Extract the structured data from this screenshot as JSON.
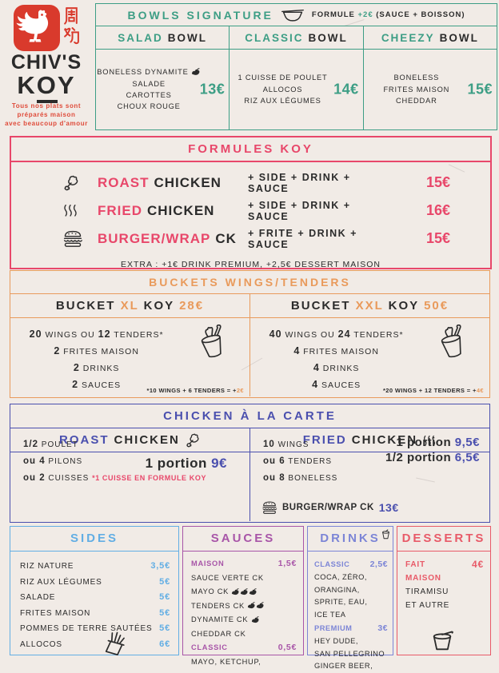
{
  "colors": {
    "teal": "#3d9e85",
    "pink": "#e8476a",
    "orange": "#e99a5b",
    "indigo": "#4a4fae",
    "sky": "#62aee4",
    "purple": "#a855a8",
    "periwinkle": "#7c85d6",
    "rose": "#e85a68",
    "logo_red": "#d93a2c",
    "ink": "#2b2b2b",
    "paper": "#f1ebe6"
  },
  "logo": {
    "chinese_top": "周",
    "chinese_bottom": "鸡",
    "brand_top": "CHIV'S",
    "brand_koy_k": "K",
    "brand_koy_o": "O",
    "brand_koy_y": "Y",
    "tagline_lines": [
      "Tous nos plats sont",
      "préparés maison",
      "avec beaucoup d'amour"
    ]
  },
  "bowls": {
    "title": "BOWLS SIGNATURE",
    "formule": {
      "label": "FORMULE ",
      "plus": "+2€",
      "rest": " (SAUCE + BOISSON)"
    },
    "columns": [
      {
        "accent": "SALAD",
        "rest": "BOWL",
        "items": [
          "BONELESS DYNAMITE",
          "SALADE",
          "CAROTTES",
          "CHOUX ROUGE"
        ],
        "chili_after_item": 0,
        "price": "13€"
      },
      {
        "accent": "CLASSIC",
        "rest": "BOWL",
        "items": [
          "1 CUISSE DE POULET",
          "ALLOCOS",
          "RIZ AUX LÉGUMES"
        ],
        "price": "14€"
      },
      {
        "accent": "CHEEZY",
        "rest": "BOWL",
        "items": [
          "BONELESS",
          "FRITES MAISON",
          "CHEDDAR"
        ],
        "price": "15€"
      }
    ]
  },
  "formules": {
    "title": "FORMULES KOY",
    "rows": [
      {
        "icon": "drumstick",
        "accent": "ROAST",
        "rest": "CHICKEN",
        "extras": "+ SIDE + DRINK + SAUCE",
        "price": "15€"
      },
      {
        "icon": "steam",
        "accent": "FRIED",
        "rest": "CHICKEN",
        "extras": "+ SIDE + DRINK + SAUCE",
        "price": "16€"
      },
      {
        "icon": "burger",
        "accent": "BURGER/WRAP",
        "rest": "CK",
        "extras": "+ FRITE + DRINK + SAUCE",
        "price": "15€"
      }
    ],
    "extra_note": "EXTRA : +1€ DRINK PREMIUM, +2,5€ DESSERT MAISON"
  },
  "buckets": {
    "title": "BUCKETS WINGS/TENDERS",
    "columns": [
      {
        "header": [
          {
            "t": "BUCKET ",
            "c": "ink"
          },
          {
            "t": "XL",
            "c": "or"
          },
          {
            "t": " KOY ",
            "c": "ink"
          },
          {
            "t": "28€",
            "c": "or"
          }
        ],
        "items": [
          [
            {
              "t": "20",
              "b": 1
            },
            {
              "t": " WINGS OU "
            },
            {
              "t": "12",
              "b": 1
            },
            {
              "t": " TENDERS*"
            }
          ],
          [
            {
              "t": "2",
              "b": 1
            },
            {
              "t": " FRITES MAISON"
            }
          ],
          [
            {
              "t": "2",
              "b": 1
            },
            {
              "t": " DRINKS"
            }
          ],
          [
            {
              "t": "2",
              "b": 1
            },
            {
              "t": " SAUCES"
            }
          ]
        ],
        "footnote": "*10 WINGS + 6 TENDERS = +",
        "footnote_accent": "2€"
      },
      {
        "header": [
          {
            "t": "BUCKET ",
            "c": "ink"
          },
          {
            "t": "XXL",
            "c": "or"
          },
          {
            "t": " KOY ",
            "c": "ink"
          },
          {
            "t": "50€",
            "c": "or"
          }
        ],
        "items": [
          [
            {
              "t": "40",
              "b": 1
            },
            {
              "t": " WINGS OU "
            },
            {
              "t": "24",
              "b": 1
            },
            {
              "t": " TENDERS*"
            }
          ],
          [
            {
              "t": "4",
              "b": 1
            },
            {
              "t": " FRITES MAISON"
            }
          ],
          [
            {
              "t": "4",
              "b": 1
            },
            {
              "t": " DRINKS"
            }
          ],
          [
            {
              "t": "4",
              "b": 1
            },
            {
              "t": " SAUCES"
            }
          ]
        ],
        "footnote": "*20 WINGS + 12 TENDERS = +",
        "footnote_accent": "4€"
      }
    ]
  },
  "carte": {
    "title": "CHICKEN À LA CARTE",
    "roast": {
      "accent": "ROAST",
      "rest": "CHICKEN",
      "items": [
        [
          {
            "t": "1/2",
            "b": 1
          },
          {
            "t": " POULET"
          }
        ],
        [
          {
            "t": "ou ",
            "b": 1
          },
          {
            "t": "4",
            "b": 1
          },
          {
            "t": " PILONS"
          }
        ],
        [
          {
            "t": "ou ",
            "b": 1
          },
          {
            "t": "2",
            "b": 1
          },
          {
            "t": " CUISSES  "
          },
          {
            "t": "*1 CUISSE EN FORMULE KOY",
            "note": 1
          }
        ]
      ],
      "portion_label": "1 portion ",
      "portion_price": "9€"
    },
    "fried": {
      "accent": "FRIED",
      "rest": "CHICKEN",
      "items": [
        [
          {
            "t": "10",
            "b": 1
          },
          {
            "t": " WINGS"
          }
        ],
        [
          {
            "t": "ou ",
            "b": 1
          },
          {
            "t": "6",
            "b": 1
          },
          {
            "t": " TENDERS"
          }
        ],
        [
          {
            "t": "ou ",
            "b": 1
          },
          {
            "t": "8",
            "b": 1
          },
          {
            "t": " BONELESS"
          }
        ]
      ],
      "portions": [
        {
          "label": "1 portion ",
          "price": "9,5€"
        },
        {
          "label": "1/2 portion ",
          "price": "6,5€"
        }
      ],
      "burger_label": "BURGER/WRAP CK ",
      "burger_price": "13€"
    }
  },
  "sides": {
    "title": "SIDES",
    "items": [
      {
        "name": "RIZ NATURE",
        "price": "3,5€"
      },
      {
        "name": "RIZ AUX LÉGUMES",
        "price": "5€"
      },
      {
        "name": "SALADE",
        "price": "5€"
      },
      {
        "name": "FRITES MAISON",
        "price": "5€"
      },
      {
        "name": "POMMES DE TERRE SAUTÉES",
        "price": "5€"
      },
      {
        "name": "ALLOCOS",
        "price": "6€"
      }
    ]
  },
  "sauces": {
    "title": "SAUCES",
    "groups": [
      {
        "label": "MAISON",
        "price": "1,5€",
        "items": [
          {
            "name": "SAUCE VERTE CK",
            "chilis": 0
          },
          {
            "name": "MAYO CK ",
            "chilis": 3
          },
          {
            "name": "TENDERS CK ",
            "chilis": 2
          },
          {
            "name": "DYNAMITE CK ",
            "chilis": 1
          },
          {
            "name": "CHEDDAR CK",
            "chilis": 0
          }
        ]
      },
      {
        "label": "CLASSIC",
        "price": "0,5€",
        "items": [
          {
            "name": "MAYO, KETCHUP,",
            "chilis": 0
          }
        ]
      }
    ]
  },
  "drinks": {
    "title": "DRINKS",
    "groups": [
      {
        "label": "CLASSIC",
        "price": "2,5€",
        "lines": [
          "COCA, ZÉRO,",
          "ORANGINA,",
          "SPRITE, EAU,",
          "ICE TEA"
        ]
      },
      {
        "label": "PREMIUM",
        "price": "3€",
        "lines": [
          "HEY DUDE,",
          "SAN PELLEGRINO",
          "GINGER BEER,"
        ]
      }
    ]
  },
  "desserts": {
    "title": "DESSERTS",
    "label_line1": "FAIT",
    "label_line2": "MAISON",
    "price": "4€",
    "lines": [
      "TIRAMISU",
      "ET AUTRE"
    ]
  }
}
